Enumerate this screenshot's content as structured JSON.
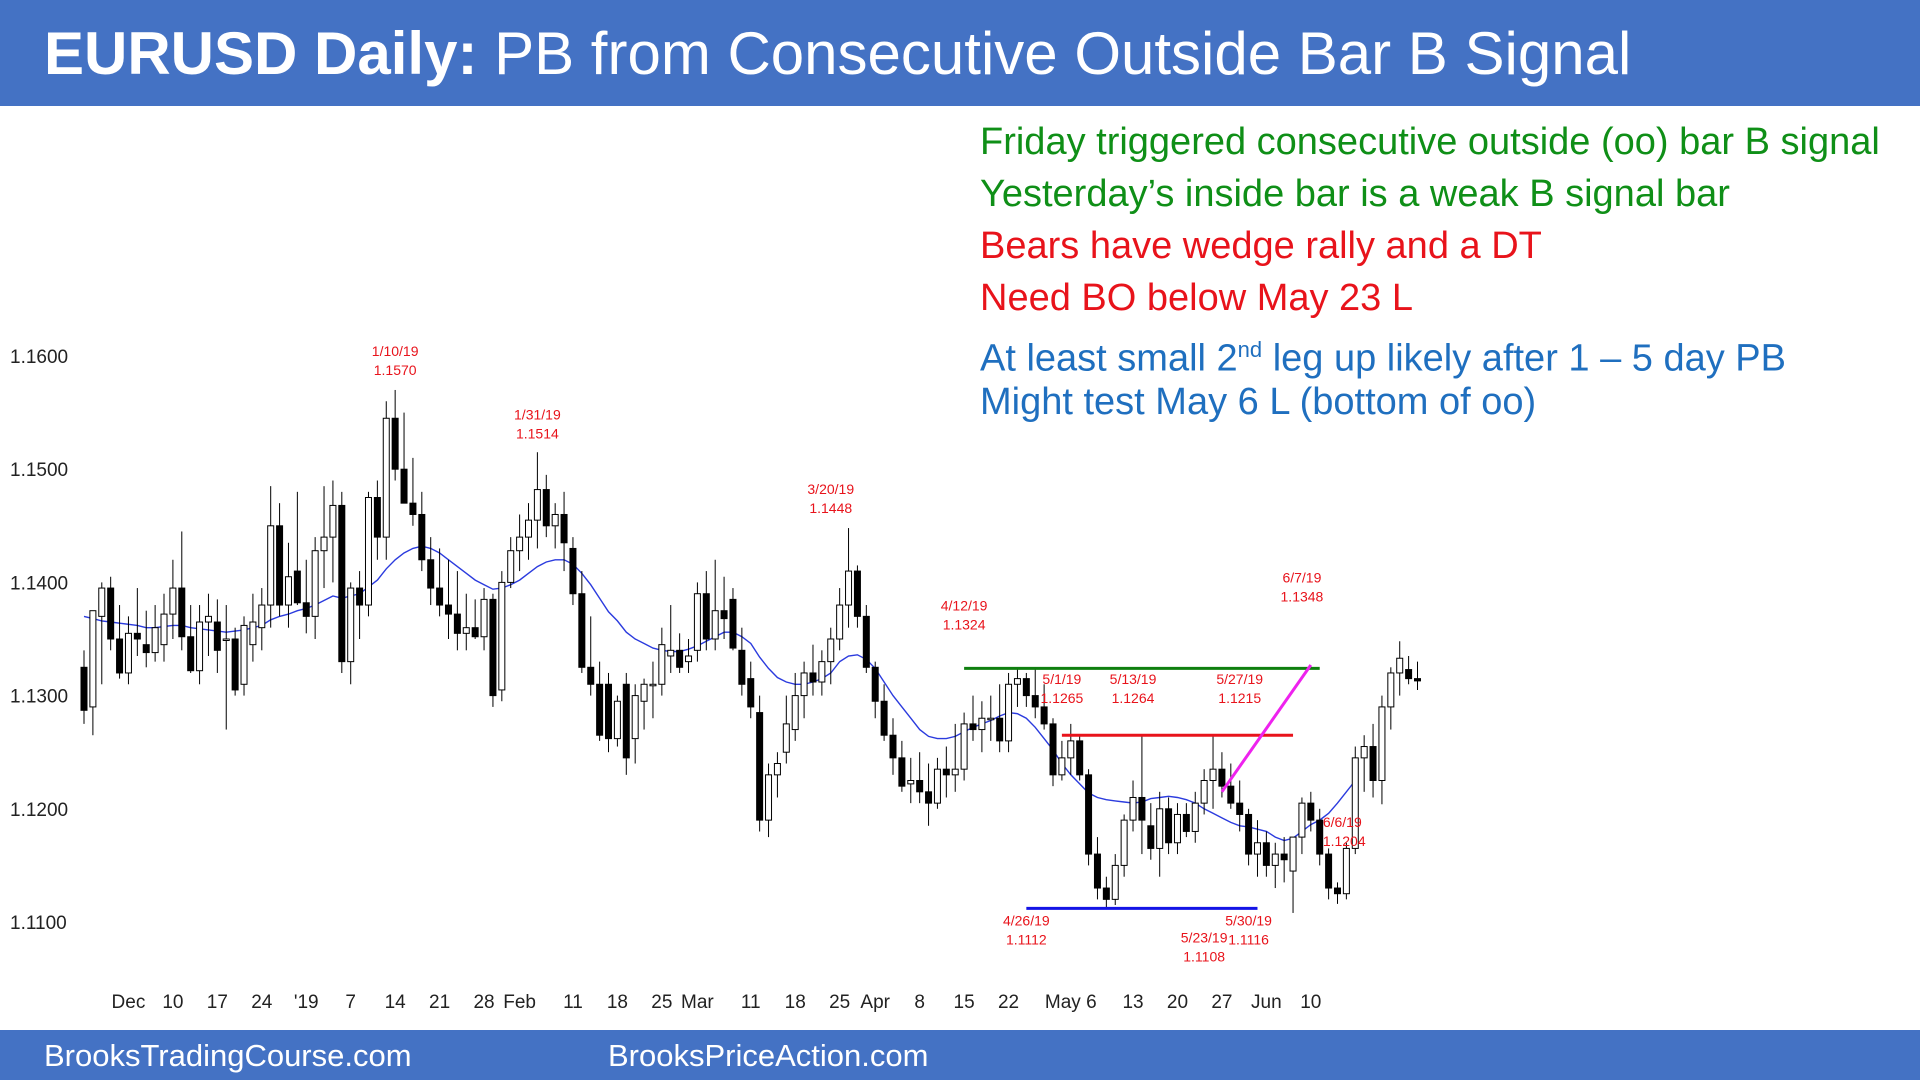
{
  "title": {
    "bold": "EURUSD Daily:",
    "rest": "PB from Consecutive Outside Bar B Signal"
  },
  "footer": {
    "left": "BrooksTradingCourse.com",
    "center": "BrooksPriceAction.com"
  },
  "notes": [
    {
      "text": "Friday triggered consecutive outside (oo) bar B signal",
      "color": "#0f8f17"
    },
    {
      "text": "Yesterday’s inside bar is a weak B signal bar",
      "color": "#0f8f17"
    },
    {
      "text": "Bears have wedge rally and a DT",
      "color": "#e8131b"
    },
    {
      "text": "Need BO below May 23 L",
      "color": "#e8131b"
    },
    {
      "text": "At least small 2",
      "sup": "nd",
      "after": " leg up likely after 1 – 5 day PB",
      "color": "#1f6fbf"
    },
    {
      "text": "Might test May 6 L (bottom of oo)",
      "color": "#1f6fbf"
    }
  ],
  "colors": {
    "header": "#4472c4",
    "ma": "#2b3bde",
    "label_red": "#e8131b",
    "green_line": "#0f7f0f",
    "red_line": "#e8131b",
    "blue_line": "#1414e6",
    "magenta_line": "#ee22ee"
  },
  "chart_data": {
    "type": "candlestick",
    "symbol": "EURUSD",
    "timeframe": "Daily",
    "ylim": [
      1.1055,
      1.168
    ],
    "y_ticks": [
      1.11,
      1.12,
      1.13,
      1.14,
      1.15,
      1.16
    ],
    "y_tick_labels": [
      "1.1100",
      "1.1200",
      "1.1300",
      "1.1400",
      "1.1500",
      "1.1600"
    ],
    "x_tick_labels": [
      {
        "i": 5,
        "label": "Dec"
      },
      {
        "i": 10,
        "label": "10"
      },
      {
        "i": 15,
        "label": "17"
      },
      {
        "i": 20,
        "label": "24"
      },
      {
        "i": 25,
        "label": "'19"
      },
      {
        "i": 30,
        "label": "7"
      },
      {
        "i": 35,
        "label": "14"
      },
      {
        "i": 40,
        "label": "21"
      },
      {
        "i": 45,
        "label": "28"
      },
      {
        "i": 49,
        "label": "Feb"
      },
      {
        "i": 55,
        "label": "11"
      },
      {
        "i": 60,
        "label": "18"
      },
      {
        "i": 65,
        "label": "25"
      },
      {
        "i": 69,
        "label": "Mar"
      },
      {
        "i": 75,
        "label": "11"
      },
      {
        "i": 80,
        "label": "18"
      },
      {
        "i": 85,
        "label": "25"
      },
      {
        "i": 89,
        "label": "Apr"
      },
      {
        "i": 94,
        "label": "8"
      },
      {
        "i": 99,
        "label": "15"
      },
      {
        "i": 104,
        "label": "22"
      },
      {
        "i": 111,
        "label": "May 6"
      },
      {
        "i": 118,
        "label": "13"
      },
      {
        "i": 123,
        "label": "20"
      },
      {
        "i": 128,
        "label": "27"
      },
      {
        "i": 133,
        "label": "Jun"
      },
      {
        "i": 138,
        "label": "10"
      }
    ],
    "bars": [
      [
        1.1325,
        1.134,
        1.1275,
        1.1287
      ],
      [
        1.129,
        1.134,
        1.1265,
        1.1375
      ],
      [
        1.137,
        1.14,
        1.131,
        1.1395
      ],
      [
        1.1395,
        1.1405,
        1.134,
        1.135
      ],
      [
        1.135,
        1.138,
        1.1315,
        1.132
      ],
      [
        1.132,
        1.137,
        1.131,
        1.1355
      ],
      [
        1.1355,
        1.1395,
        1.1335,
        1.135
      ],
      [
        1.1345,
        1.1375,
        1.1325,
        1.1338
      ],
      [
        1.1338,
        1.138,
        1.133,
        1.136
      ],
      [
        1.1345,
        1.139,
        1.133,
        1.1372
      ],
      [
        1.1372,
        1.142,
        1.135,
        1.1395
      ],
      [
        1.1395,
        1.1445,
        1.134,
        1.1352
      ],
      [
        1.1352,
        1.138,
        1.132,
        1.1322
      ],
      [
        1.1322,
        1.138,
        1.131,
        1.1365
      ],
      [
        1.1365,
        1.139,
        1.1335,
        1.137
      ],
      [
        1.1365,
        1.1385,
        1.132,
        1.134
      ],
      [
        1.135,
        1.138,
        1.127,
        1.135
      ],
      [
        1.135,
        1.136,
        1.13,
        1.1305
      ],
      [
        1.131,
        1.137,
        1.13,
        1.1362
      ],
      [
        1.1345,
        1.139,
        1.133,
        1.1365
      ],
      [
        1.136,
        1.1395,
        1.134,
        1.138
      ],
      [
        1.138,
        1.1485,
        1.136,
        1.145
      ],
      [
        1.145,
        1.147,
        1.137,
        1.138
      ],
      [
        1.138,
        1.1435,
        1.136,
        1.1405
      ],
      [
        1.141,
        1.148,
        1.138,
        1.1382
      ],
      [
        1.1382,
        1.142,
        1.1355,
        1.137
      ],
      [
        1.137,
        1.144,
        1.135,
        1.1428
      ],
      [
        1.1428,
        1.1485,
        1.1395,
        1.144
      ],
      [
        1.144,
        1.149,
        1.14,
        1.1468
      ],
      [
        1.1468,
        1.148,
        1.132,
        1.133
      ],
      [
        1.133,
        1.14,
        1.131,
        1.1395
      ],
      [
        1.1395,
        1.141,
        1.135,
        1.138
      ],
      [
        1.138,
        1.148,
        1.137,
        1.1475
      ],
      [
        1.1475,
        1.149,
        1.142,
        1.144
      ],
      [
        1.144,
        1.156,
        1.142,
        1.1545
      ],
      [
        1.1545,
        1.157,
        1.149,
        1.15
      ],
      [
        1.15,
        1.155,
        1.147,
        1.147
      ],
      [
        1.147,
        1.151,
        1.145,
        1.146
      ],
      [
        1.146,
        1.148,
        1.141,
        1.142
      ],
      [
        1.142,
        1.144,
        1.138,
        1.1395
      ],
      [
        1.1395,
        1.143,
        1.137,
        1.138
      ],
      [
        1.138,
        1.142,
        1.135,
        1.1372
      ],
      [
        1.1372,
        1.141,
        1.134,
        1.1355
      ],
      [
        1.1355,
        1.139,
        1.134,
        1.136
      ],
      [
        1.136,
        1.1385,
        1.135,
        1.1352
      ],
      [
        1.1352,
        1.1395,
        1.134,
        1.1385
      ],
      [
        1.1385,
        1.139,
        1.129,
        1.13
      ],
      [
        1.1305,
        1.141,
        1.1295,
        1.14
      ],
      [
        1.14,
        1.144,
        1.1395,
        1.1428
      ],
      [
        1.1428,
        1.146,
        1.141,
        1.144
      ],
      [
        1.144,
        1.147,
        1.142,
        1.1455
      ],
      [
        1.1455,
        1.1515,
        1.143,
        1.1482
      ],
      [
        1.1482,
        1.1495,
        1.144,
        1.145
      ],
      [
        1.145,
        1.147,
        1.143,
        1.146
      ],
      [
        1.146,
        1.148,
        1.141,
        1.1435
      ],
      [
        1.143,
        1.144,
        1.138,
        1.139
      ],
      [
        1.139,
        1.141,
        1.132,
        1.1325
      ],
      [
        1.1325,
        1.137,
        1.13,
        1.131
      ],
      [
        1.131,
        1.133,
        1.126,
        1.1265
      ],
      [
        1.131,
        1.132,
        1.125,
        1.1262
      ],
      [
        1.1262,
        1.13,
        1.1255,
        1.1295
      ],
      [
        1.131,
        1.132,
        1.123,
        1.1245
      ],
      [
        1.1262,
        1.131,
        1.124,
        1.13
      ],
      [
        1.1295,
        1.1315,
        1.127,
        1.131
      ],
      [
        1.131,
        1.133,
        1.128,
        1.131
      ],
      [
        1.131,
        1.136,
        1.13,
        1.1345
      ],
      [
        1.1335,
        1.138,
        1.132,
        1.134
      ],
      [
        1.134,
        1.1355,
        1.132,
        1.1325
      ],
      [
        1.133,
        1.135,
        1.132,
        1.1335
      ],
      [
        1.134,
        1.14,
        1.133,
        1.139
      ],
      [
        1.139,
        1.141,
        1.134,
        1.135
      ],
      [
        1.135,
        1.142,
        1.134,
        1.1375
      ],
      [
        1.1375,
        1.1405,
        1.135,
        1.1368
      ],
      [
        1.1385,
        1.1395,
        1.134,
        1.1342
      ],
      [
        1.134,
        1.136,
        1.13,
        1.131
      ],
      [
        1.1315,
        1.133,
        1.128,
        1.129
      ],
      [
        1.1285,
        1.13,
        1.118,
        1.119
      ],
      [
        1.119,
        1.124,
        1.1175,
        1.123
      ],
      [
        1.123,
        1.125,
        1.121,
        1.124
      ],
      [
        1.125,
        1.13,
        1.124,
        1.1275
      ],
      [
        1.127,
        1.132,
        1.126,
        1.13
      ],
      [
        1.13,
        1.133,
        1.128,
        1.132
      ],
      [
        1.132,
        1.1345,
        1.13,
        1.1312
      ],
      [
        1.1312,
        1.134,
        1.13,
        1.133
      ],
      [
        1.133,
        1.136,
        1.131,
        1.135
      ],
      [
        1.135,
        1.1395,
        1.134,
        1.138
      ],
      [
        1.138,
        1.1448,
        1.136,
        1.141
      ],
      [
        1.141,
        1.1415,
        1.136,
        1.137
      ],
      [
        1.137,
        1.138,
        1.132,
        1.1325
      ],
      [
        1.1325,
        1.133,
        1.128,
        1.1295
      ],
      [
        1.1295,
        1.131,
        1.126,
        1.1265
      ],
      [
        1.1265,
        1.128,
        1.123,
        1.1245
      ],
      [
        1.1245,
        1.126,
        1.1215,
        1.122
      ],
      [
        1.1222,
        1.1245,
        1.1205,
        1.1225
      ],
      [
        1.1225,
        1.125,
        1.1205,
        1.1215
      ],
      [
        1.1215,
        1.124,
        1.1185,
        1.1205
      ],
      [
        1.1205,
        1.1245,
        1.12,
        1.1235
      ],
      [
        1.1235,
        1.1255,
        1.121,
        1.123
      ],
      [
        1.123,
        1.1275,
        1.1215,
        1.1235
      ],
      [
        1.1235,
        1.1285,
        1.1225,
        1.1275
      ],
      [
        1.1275,
        1.13,
        1.126,
        1.127
      ],
      [
        1.127,
        1.1295,
        1.125,
        1.128
      ],
      [
        1.128,
        1.13,
        1.126,
        1.128
      ],
      [
        1.128,
        1.131,
        1.125,
        1.126
      ],
      [
        1.126,
        1.132,
        1.125,
        1.131
      ],
      [
        1.131,
        1.1324,
        1.129,
        1.1315
      ],
      [
        1.1315,
        1.132,
        1.129,
        1.13
      ],
      [
        1.13,
        1.1324,
        1.128,
        1.129
      ],
      [
        1.129,
        1.131,
        1.127,
        1.1275
      ],
      [
        1.1275,
        1.128,
        1.122,
        1.123
      ],
      [
        1.123,
        1.126,
        1.1225,
        1.1245
      ],
      [
        1.1245,
        1.1275,
        1.123,
        1.126
      ],
      [
        1.126,
        1.1265,
        1.1225,
        1.123
      ],
      [
        1.123,
        1.1235,
        1.115,
        1.116
      ],
      [
        1.116,
        1.1175,
        1.112,
        1.113
      ],
      [
        1.113,
        1.114,
        1.1112,
        1.112
      ],
      [
        1.112,
        1.116,
        1.1115,
        1.115
      ],
      [
        1.115,
        1.1195,
        1.114,
        1.119
      ],
      [
        1.119,
        1.1225,
        1.118,
        1.121
      ],
      [
        1.121,
        1.1265,
        1.116,
        1.119
      ],
      [
        1.1185,
        1.1205,
        1.1155,
        1.1165
      ],
      [
        1.1165,
        1.1215,
        1.114,
        1.12
      ],
      [
        1.12,
        1.121,
        1.116,
        1.117
      ],
      [
        1.117,
        1.1205,
        1.116,
        1.1195
      ],
      [
        1.1195,
        1.1205,
        1.1175,
        1.118
      ],
      [
        1.118,
        1.1215,
        1.117,
        1.1205
      ],
      [
        1.1205,
        1.1235,
        1.1195,
        1.1225
      ],
      [
        1.1225,
        1.1264,
        1.12,
        1.1235
      ],
      [
        1.1235,
        1.125,
        1.121,
        1.122
      ],
      [
        1.122,
        1.124,
        1.12,
        1.1205
      ],
      [
        1.1205,
        1.1225,
        1.118,
        1.1195
      ],
      [
        1.1195,
        1.12,
        1.115,
        1.116
      ],
      [
        1.116,
        1.119,
        1.114,
        1.117
      ],
      [
        1.117,
        1.118,
        1.114,
        1.115
      ],
      [
        1.115,
        1.117,
        1.113,
        1.116
      ],
      [
        1.116,
        1.1175,
        1.1135,
        1.1155
      ],
      [
        1.1145,
        1.117,
        1.1108,
        1.1175
      ],
      [
        1.1175,
        1.121,
        1.116,
        1.1205
      ],
      [
        1.1205,
        1.1215,
        1.118,
        1.119
      ],
      [
        1.119,
        1.12,
        1.115,
        1.116
      ],
      [
        1.116,
        1.1165,
        1.112,
        1.113
      ],
      [
        1.113,
        1.1135,
        1.1116,
        1.1125
      ],
      [
        1.1125,
        1.117,
        1.112,
        1.1165
      ],
      [
        1.1165,
        1.1255,
        1.116,
        1.1245
      ],
      [
        1.1245,
        1.1265,
        1.1215,
        1.1255
      ],
      [
        1.1255,
        1.1275,
        1.121,
        1.1225
      ],
      [
        1.1225,
        1.13,
        1.1204,
        1.129
      ],
      [
        1.129,
        1.1325,
        1.127,
        1.132
      ],
      [
        1.132,
        1.1348,
        1.13,
        1.1333
      ],
      [
        1.1323,
        1.1335,
        1.131,
        1.1315
      ],
      [
        1.1315,
        1.133,
        1.1305,
        1.1313
      ]
    ],
    "moving_average": [
      1.137,
      1.1368,
      1.1366,
      1.1365,
      1.1364,
      1.1363,
      1.1362,
      1.136,
      1.136,
      1.1361,
      1.1362,
      1.1362,
      1.136,
      1.1359,
      1.1358,
      1.1357,
      1.1356,
      1.1357,
      1.1358,
      1.136,
      1.1362,
      1.1367,
      1.137,
      1.1372,
      1.1375,
      1.1377,
      1.138,
      1.1384,
      1.1388,
      1.1386,
      1.1388,
      1.139,
      1.1396,
      1.1402,
      1.1412,
      1.142,
      1.1426,
      1.143,
      1.1432,
      1.143,
      1.1426,
      1.142,
      1.1414,
      1.1408,
      1.1402,
      1.1398,
      1.1394,
      1.1395,
      1.1398,
      1.1402,
      1.1408,
      1.1414,
      1.1418,
      1.142,
      1.142,
      1.1416,
      1.1408,
      1.1398,
      1.1386,
      1.1374,
      1.1366,
      1.1356,
      1.135,
      1.1346,
      1.1342,
      1.134,
      1.1339,
      1.1339,
      1.1341,
      1.1344,
      1.1348,
      1.1352,
      1.1356,
      1.1356,
      1.1352,
      1.1346,
      1.1334,
      1.1324,
      1.1316,
      1.1312,
      1.131,
      1.131,
      1.1312,
      1.1315,
      1.132,
      1.133,
      1.1335,
      1.1336,
      1.1332,
      1.1324,
      1.1312,
      1.13,
      1.129,
      1.128,
      1.127,
      1.1264,
      1.1262,
      1.1262,
      1.1264,
      1.1268,
      1.1272,
      1.1275,
      1.1278,
      1.1282,
      1.1285,
      1.1284,
      1.128,
      1.1272,
      1.1262,
      1.1252,
      1.124,
      1.123,
      1.1222,
      1.1214,
      1.121,
      1.1208,
      1.1207,
      1.1206,
      1.1205,
      1.1206,
      1.1209,
      1.121,
      1.1211,
      1.121,
      1.1208,
      1.1205,
      1.12,
      1.1196,
      1.1192,
      1.1188,
      1.1185,
      1.1184,
      1.1182,
      1.118,
      1.1175,
      1.1172,
      1.1174,
      1.118,
      1.1186,
      1.119,
      1.1196,
      1.1205,
      1.1215,
      1.1225
    ],
    "annotations": [
      {
        "i": 35,
        "date": "1/10/19",
        "price": "1.1570",
        "pos": "above",
        "value": 1.157
      },
      {
        "i": 51,
        "date": "1/31/19",
        "price": "1.1514",
        "pos": "above",
        "value": 1.1514
      },
      {
        "i": 84,
        "date": "3/20/19",
        "price": "1.1448",
        "pos": "above",
        "value": 1.1448
      },
      {
        "i": 99,
        "date": "4/12/19",
        "price": "1.1324",
        "pos": "above",
        "value": 1.1345
      },
      {
        "i": 110,
        "date": "5/1/19",
        "price": "1.1265",
        "pos": "above",
        "value": 1.128
      },
      {
        "i": 118,
        "date": "5/13/19",
        "price": "1.1264",
        "pos": "above",
        "value": 1.128
      },
      {
        "i": 130,
        "date": "5/27/19",
        "price": "1.1215",
        "pos": "above",
        "value": 1.128
      },
      {
        "i": 137,
        "date": "6/7/19",
        "price": "1.1348",
        "pos": "above",
        "value": 1.137
      },
      {
        "i": 106,
        "date": "4/26/19",
        "price": "1.1112",
        "pos": "below",
        "value": 1.1097
      },
      {
        "i": 126,
        "date": "5/23/19",
        "price": "1.1108",
        "pos": "below",
        "value": 1.1082
      },
      {
        "i": 131,
        "date": "5/30/19",
        "price": "1.1116",
        "pos": "below",
        "value": 1.1097
      },
      {
        "i": 138,
        "date": "6/6/19",
        "price": "1.1204",
        "pos": "right",
        "value": 1.1184
      }
    ],
    "lines": [
      {
        "from_i": 99,
        "to_i": 139,
        "from_price": 1.1324,
        "to_price": 1.1324,
        "color": "#0f7f0f"
      },
      {
        "from_i": 110,
        "to_i": 136,
        "from_price": 1.1265,
        "to_price": 1.1265,
        "color": "#e8131b"
      },
      {
        "from_i": 106,
        "to_i": 132,
        "from_price": 1.1112,
        "to_price": 1.1112,
        "color": "#1414e6"
      },
      {
        "from_i": 128,
        "to_i": 138,
        "from_price": 1.1215,
        "to_price": 1.1327,
        "color": "#ee22ee"
      }
    ]
  }
}
